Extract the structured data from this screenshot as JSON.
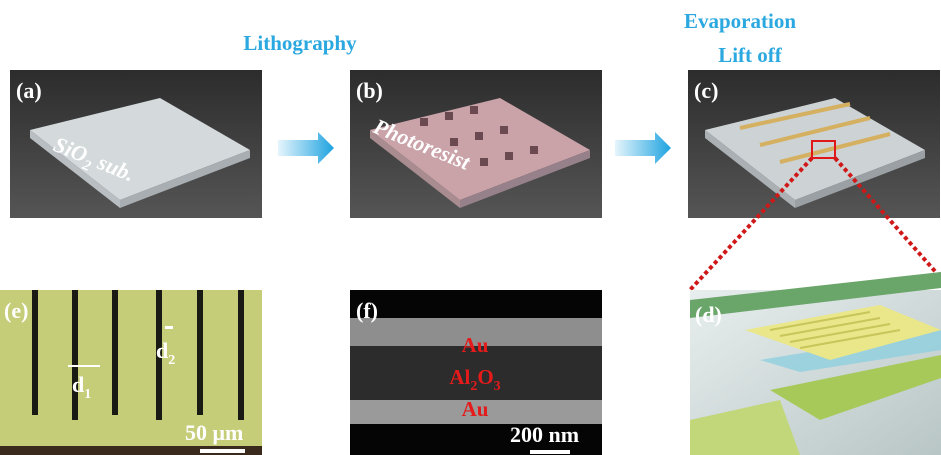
{
  "header": {
    "step1": "Lithography",
    "step2": [
      "Evaporation",
      "Lift off"
    ]
  },
  "panels": {
    "a": {
      "label": "(a)",
      "substrate": {
        "base": "SiO",
        "sub": "2",
        "rest": "sub."
      }
    },
    "b": {
      "label": "(b)",
      "layer": "Photoresist"
    },
    "c": {
      "label": "(c)"
    },
    "d": {
      "label": "(d)"
    },
    "e": {
      "label": "(e)",
      "d1": {
        "base": "d",
        "sub": "1"
      },
      "d2": {
        "base": "d",
        "sub": "2"
      },
      "scale": "50 μm"
    },
    "f": {
      "label": "(f)",
      "layers": [
        "Au",
        {
          "base": "Al",
          "sub": "2",
          "mid": "O",
          "sub2": "3"
        },
        "Au"
      ],
      "scale": "200 nm"
    }
  }
}
